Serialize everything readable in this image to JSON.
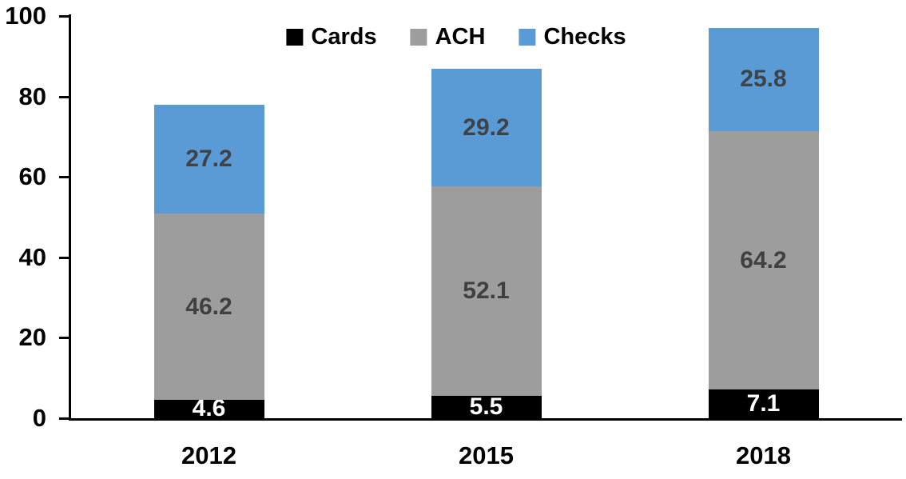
{
  "chart_data": {
    "type": "bar",
    "stacked": true,
    "categories": [
      "2012",
      "2015",
      "2018"
    ],
    "series": [
      {
        "name": "Cards",
        "color": "#000000",
        "label_color": "#ffffff",
        "values": [
          4.6,
          5.5,
          7.1
        ]
      },
      {
        "name": "ACH",
        "color": "#9d9d9d",
        "label_color": "#404040",
        "values": [
          46.2,
          52.1,
          64.2
        ]
      },
      {
        "name": "Checks",
        "color": "#5b9bd5",
        "label_color": "#3d4349",
        "values": [
          27.2,
          29.2,
          25.8
        ]
      }
    ],
    "yticks": [
      0,
      20,
      40,
      60,
      80,
      100
    ],
    "ylim": [
      0,
      100
    ],
    "title": "",
    "xlabel": "",
    "ylabel": "",
    "grid": false,
    "legend_position": "top-center",
    "axis_color": "#000000",
    "background_color": "#ffffff"
  }
}
